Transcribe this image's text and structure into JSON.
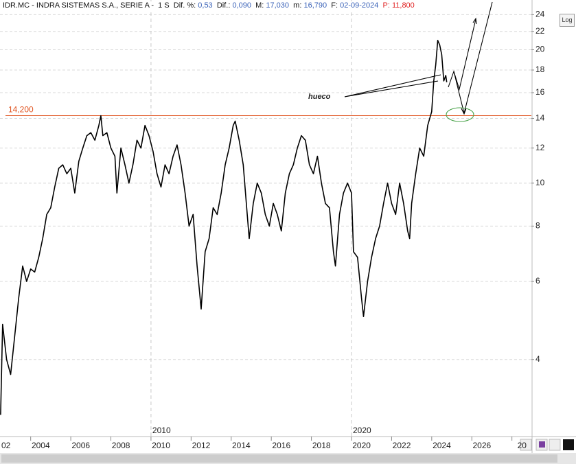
{
  "chart_data": {
    "type": "line",
    "title": "IDR.MC - INDRA SISTEMAS S.A., SERIE A -  1 S",
    "stats": [
      {
        "label": "Dif. %:",
        "value": "0,53"
      },
      {
        "label": "Dif.:",
        "value": "0,090"
      },
      {
        "label": "M:",
        "value": "17,030"
      },
      {
        "label": "m:",
        "value": "16,790"
      },
      {
        "label": "F:",
        "value": "02-09-2024"
      },
      {
        "label": "P:",
        "value": "11,800"
      }
    ],
    "log_button": "Log",
    "log_scale": true,
    "grid": true,
    "color": "#000000",
    "xlim": [
      2002.47,
      2028.97
    ],
    "ylim": [
      2.68,
      25.9
    ],
    "yticks": [
      4,
      6,
      8,
      10,
      12,
      14,
      16,
      18,
      20,
      22,
      24
    ],
    "xticks": [
      {
        "value": 2002,
        "label": "02"
      },
      2004,
      2006,
      2008,
      2010,
      2012,
      2014,
      2016,
      2018,
      2020,
      2022,
      2024,
      2026,
      {
        "value": 2028,
        "label": "20"
      }
    ],
    "decade_lines": [
      {
        "value": 2010,
        "label": "2010"
      },
      {
        "value": 2020,
        "label": "2020"
      }
    ],
    "hline": {
      "value": 14.2,
      "label": "14,200",
      "color": "#e0531f"
    },
    "annotations": [
      {
        "text": "hueco"
      }
    ],
    "x": [
      2002.5,
      2002.6,
      2002.8,
      2003.0,
      2003.2,
      2003.4,
      2003.6,
      2003.8,
      2004.0,
      2004.2,
      2004.4,
      2004.6,
      2004.8,
      2005.0,
      2005.2,
      2005.4,
      2005.6,
      2005.8,
      2006.0,
      2006.2,
      2006.4,
      2006.6,
      2006.8,
      2007.0,
      2007.2,
      2007.4,
      2007.5,
      2007.6,
      2007.8,
      2008.0,
      2008.2,
      2008.3,
      2008.5,
      2008.7,
      2008.9,
      2009.1,
      2009.3,
      2009.5,
      2009.7,
      2009.9,
      2010.1,
      2010.3,
      2010.5,
      2010.7,
      2010.9,
      2011.1,
      2011.3,
      2011.5,
      2011.7,
      2011.9,
      2012.1,
      2012.3,
      2012.5,
      2012.7,
      2012.9,
      2013.1,
      2013.3,
      2013.5,
      2013.7,
      2013.9,
      2014.1,
      2014.2,
      2014.4,
      2014.6,
      2014.8,
      2014.9,
      2015.1,
      2015.3,
      2015.5,
      2015.7,
      2015.9,
      2016.1,
      2016.3,
      2016.5,
      2016.7,
      2016.9,
      2017.1,
      2017.3,
      2017.5,
      2017.7,
      2017.9,
      2018.1,
      2018.3,
      2018.5,
      2018.7,
      2018.9,
      2019.1,
      2019.2,
      2019.4,
      2019.6,
      2019.8,
      2020.0,
      2020.1,
      2020.3,
      2020.5,
      2020.6,
      2020.8,
      2021.0,
      2021.2,
      2021.4,
      2021.6,
      2021.8,
      2022.0,
      2022.2,
      2022.4,
      2022.6,
      2022.8,
      2022.9,
      2023.0,
      2023.2,
      2023.4,
      2023.6,
      2023.8,
      2024.0,
      2024.1,
      2024.2,
      2024.3,
      2024.4,
      2024.5,
      2024.6,
      2024.7,
      2024.75
    ],
    "values": [
      3.0,
      4.8,
      4.0,
      3.7,
      4.5,
      5.5,
      6.5,
      6.0,
      6.4,
      6.3,
      6.8,
      7.5,
      8.5,
      8.8,
      9.8,
      10.8,
      11.0,
      10.5,
      10.8,
      9.5,
      11.2,
      12.0,
      12.8,
      13.0,
      12.5,
      13.5,
      14.2,
      12.8,
      13.0,
      12.0,
      11.5,
      9.5,
      12.0,
      11.0,
      10.0,
      11.0,
      12.5,
      12.0,
      13.5,
      12.8,
      11.8,
      10.5,
      9.8,
      11.0,
      10.5,
      11.5,
      12.2,
      11.0,
      9.5,
      8.0,
      8.5,
      6.5,
      5.2,
      7.0,
      7.5,
      8.8,
      8.5,
      9.5,
      11.0,
      12.0,
      13.5,
      13.8,
      12.5,
      11.0,
      8.5,
      7.5,
      9.0,
      10.0,
      9.5,
      8.5,
      8.0,
      9.0,
      8.5,
      7.8,
      9.5,
      10.5,
      11.0,
      12.0,
      12.8,
      12.5,
      11.0,
      10.5,
      11.5,
      10.0,
      9.0,
      8.8,
      7.0,
      6.5,
      8.5,
      9.5,
      10.0,
      9.5,
      7.0,
      6.8,
      5.5,
      5.0,
      6.0,
      6.8,
      7.5,
      8.0,
      9.0,
      10.0,
      9.0,
      8.5,
      10.0,
      9.0,
      7.8,
      7.5,
      9.0,
      10.5,
      12.0,
      11.5,
      13.5,
      14.5,
      17.0,
      18.5,
      21.0,
      20.5,
      19.5,
      17.0,
      17.5,
      16.9
    ]
  }
}
